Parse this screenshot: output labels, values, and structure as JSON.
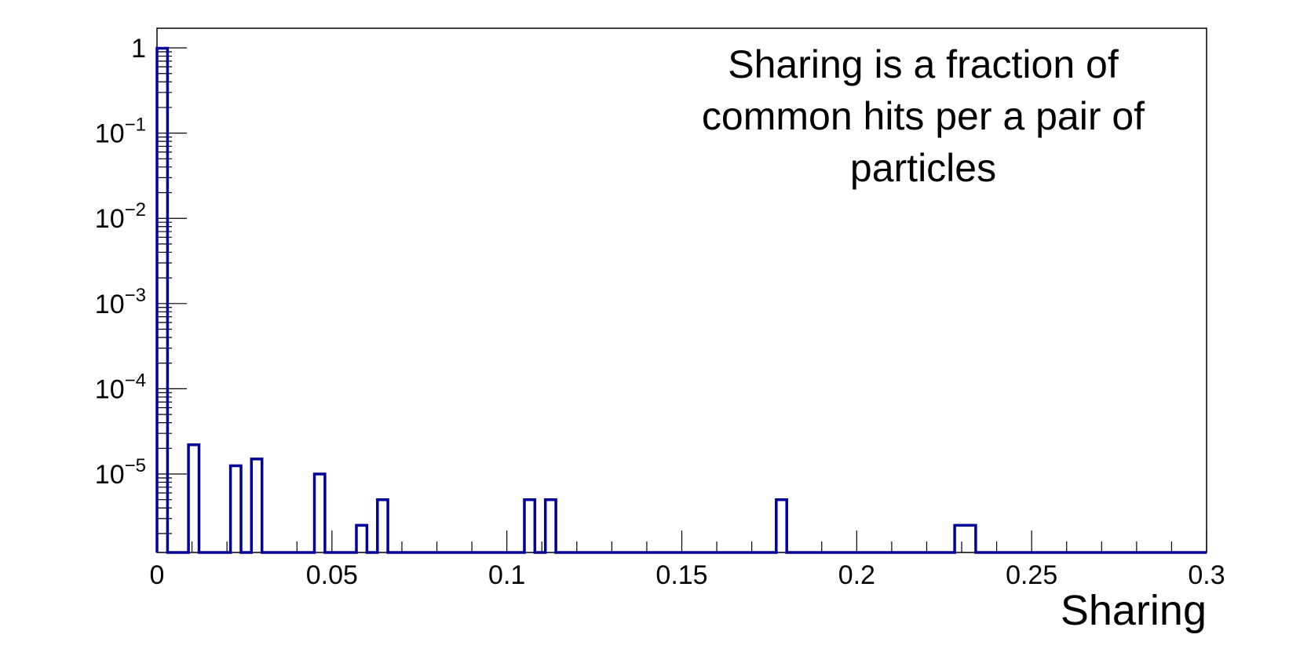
{
  "chart_data": {
    "type": "histogram",
    "title": "",
    "annotation": [
      "Sharing is a fraction of",
      "common hits per a pair of",
      "particles"
    ],
    "xlabel": "Sharing",
    "ylabel": "",
    "xlim": [
      0,
      0.3
    ],
    "ylim": [
      1.2e-06,
      1.7
    ],
    "yscale": "log",
    "grid": false,
    "x_ticks": [
      {
        "value": 0,
        "label": "0"
      },
      {
        "value": 0.05,
        "label": "0.05"
      },
      {
        "value": 0.1,
        "label": "0.1"
      },
      {
        "value": 0.15,
        "label": "0.15"
      },
      {
        "value": 0.2,
        "label": "0.2"
      },
      {
        "value": 0.25,
        "label": "0.25"
      },
      {
        "value": 0.3,
        "label": "0.3"
      }
    ],
    "y_ticks": [
      {
        "value": 1,
        "base": "1",
        "exp": ""
      },
      {
        "value": 0.1,
        "base": "10",
        "exp": "−1"
      },
      {
        "value": 0.01,
        "base": "10",
        "exp": "−2"
      },
      {
        "value": 0.001,
        "base": "10",
        "exp": "−3"
      },
      {
        "value": 0.0001,
        "base": "10",
        "exp": "−4"
      },
      {
        "value": 1e-05,
        "base": "10",
        "exp": "−5"
      }
    ],
    "line_color": "#000099",
    "bins": [
      {
        "x0": 0.0,
        "x1": 0.003,
        "y": 0.99
      },
      {
        "x0": 0.009,
        "x1": 0.012,
        "y": 2.2e-05
      },
      {
        "x0": 0.021,
        "x1": 0.024,
        "y": 1.25e-05
      },
      {
        "x0": 0.027,
        "x1": 0.03,
        "y": 1.5e-05
      },
      {
        "x0": 0.045,
        "x1": 0.048,
        "y": 1e-05
      },
      {
        "x0": 0.057,
        "x1": 0.06,
        "y": 2.5e-06
      },
      {
        "x0": 0.063,
        "x1": 0.066,
        "y": 5e-06
      },
      {
        "x0": 0.105,
        "x1": 0.108,
        "y": 5e-06
      },
      {
        "x0": 0.111,
        "x1": 0.114,
        "y": 5e-06
      },
      {
        "x0": 0.177,
        "x1": 0.18,
        "y": 5e-06
      },
      {
        "x0": 0.228,
        "x1": 0.234,
        "y": 2.5e-06
      }
    ]
  }
}
